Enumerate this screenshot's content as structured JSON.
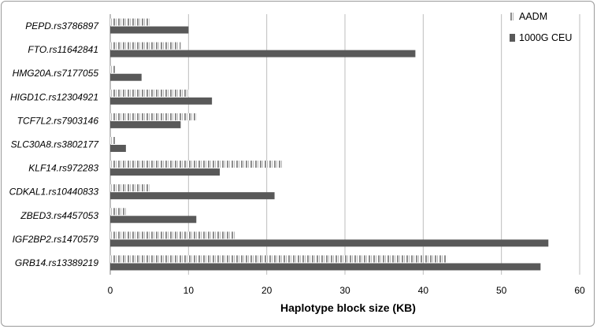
{
  "chart_data": {
    "type": "bar",
    "orientation": "horizontal",
    "categories": [
      "PEPD.rs3786897",
      "FTO.rs11642841",
      "HMG20A.rs7177055",
      "HIGD1C.rs12304921",
      "TCF7L2.rs7903146",
      "SLC30A8.rs3802177",
      "KLF14.rs972283",
      "CDKAL1.rs10440833",
      "ZBED3.rs4457053",
      "IGF2BP2.rs1470579",
      "GRB14.rs13389219"
    ],
    "series": [
      {
        "name": "AADM",
        "values": [
          5,
          9,
          0.6,
          10,
          11,
          0.6,
          22,
          5,
          2,
          16,
          43
        ],
        "pattern": "striped",
        "color": "#8c8c8c"
      },
      {
        "name": "1000G CEU",
        "values": [
          10,
          39,
          4,
          13,
          9,
          2,
          14,
          21,
          11,
          56,
          55
        ],
        "pattern": "solid",
        "color": "#595959"
      }
    ],
    "xlabel": "Haplotype block size (KB)",
    "ylabel": "",
    "title": "",
    "xlim": [
      0,
      60
    ],
    "xticks": [
      0,
      10,
      20,
      30,
      40,
      50,
      60
    ],
    "grid": "vertical",
    "legend_position": "top-right"
  }
}
